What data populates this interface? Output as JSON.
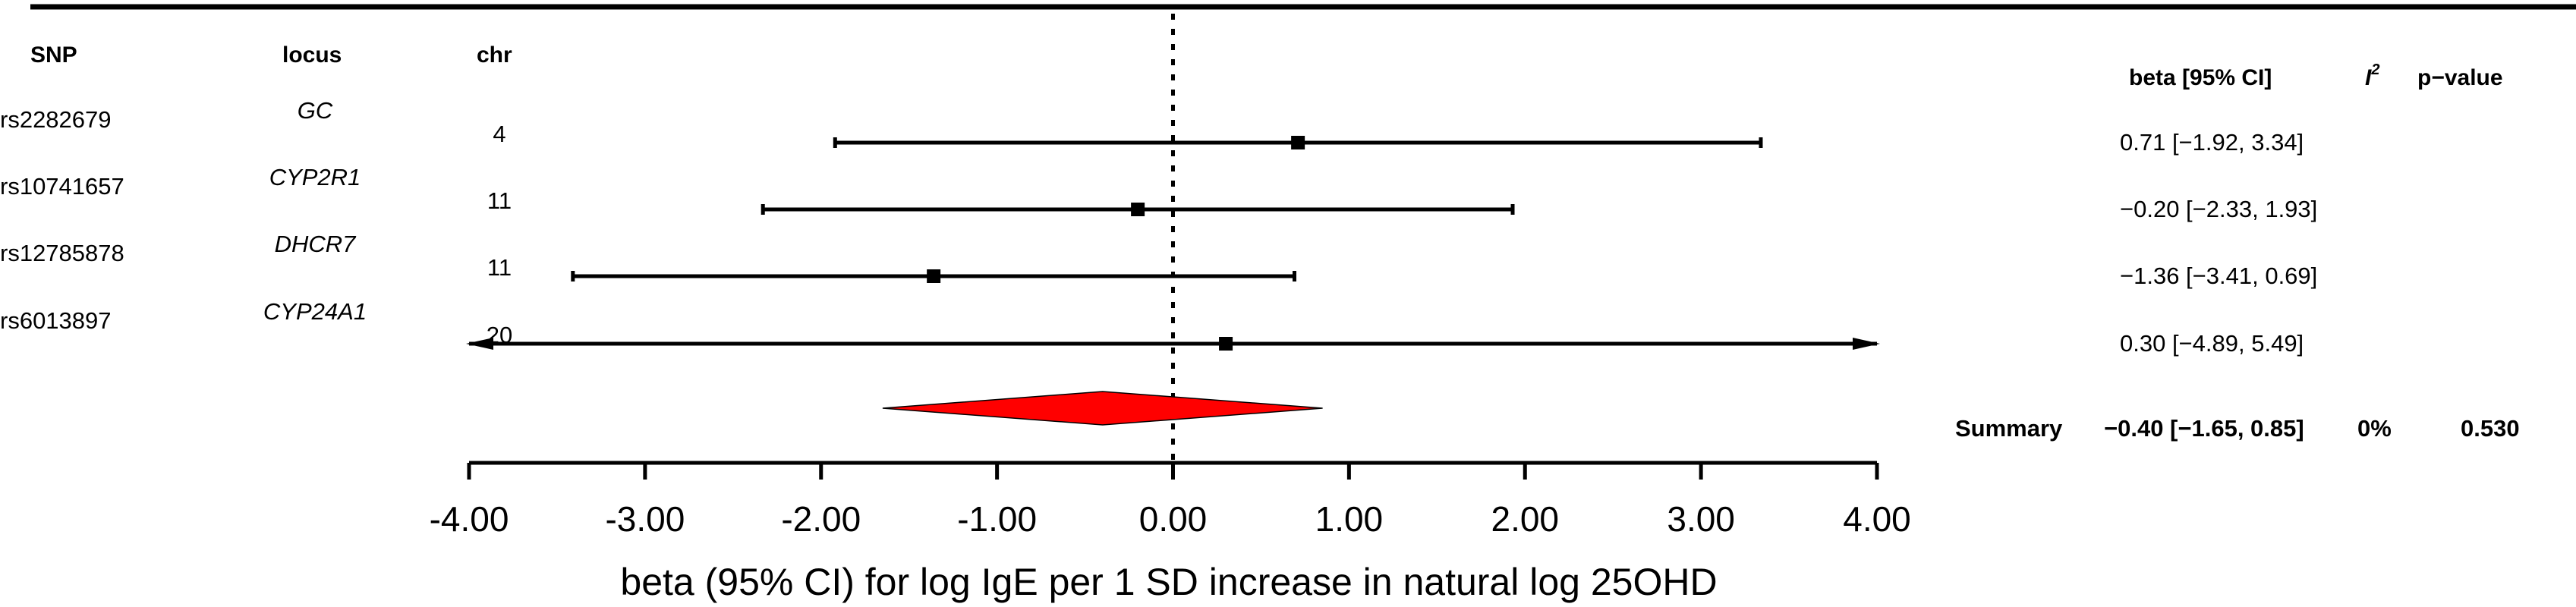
{
  "chart_data": {
    "type": "forest",
    "title": "",
    "xlabel": "beta (95% CI) for log IgE per 1 SD increase in natural log 25OHD",
    "xlim": [
      -4,
      4
    ],
    "xticks": [
      -4,
      -3,
      -2,
      -1,
      0,
      1,
      2,
      3,
      4
    ],
    "xtick_labels": [
      "-4.00",
      "-3.00",
      "-2.00",
      "-1.00",
      "0.00",
      "1.00",
      "2.00",
      "3.00",
      "4.00"
    ],
    "reference_line": 0,
    "columns": {
      "snp": "SNP",
      "locus": "locus",
      "chr": "chr",
      "beta_ci": "beta [95% CI]",
      "i2": "I",
      "i2_sup": "2",
      "p": "p−value"
    },
    "rows": [
      {
        "snp": "rs2282679",
        "locus": "GC",
        "chr": "4",
        "beta": 0.71,
        "lower": -1.92,
        "upper": 3.34,
        "label": "0.71 [−1.92, 3.34]"
      },
      {
        "snp": "rs10741657",
        "locus": "CYP2R1",
        "chr": "11",
        "beta": -0.2,
        "lower": -2.33,
        "upper": 1.93,
        "label": "−0.20 [−2.33, 1.93]"
      },
      {
        "snp": "rs12785878",
        "locus": "DHCR7",
        "chr": "11",
        "beta": -1.36,
        "lower": -3.41,
        "upper": 0.69,
        "label": "−1.36 [−3.41, 0.69]"
      },
      {
        "snp": "rs6013897",
        "locus": "CYP24A1",
        "chr": "20",
        "beta": 0.3,
        "lower": -4.89,
        "upper": 5.49,
        "label": "0.30 [−4.89, 5.49]"
      }
    ],
    "summary": {
      "label": "Summary",
      "beta": -0.4,
      "lower": -1.65,
      "upper": 0.85,
      "beta_ci": "−0.40 [−1.65, 0.85]",
      "i2": "0%",
      "p": "0.530",
      "color": "#ff0000"
    }
  }
}
